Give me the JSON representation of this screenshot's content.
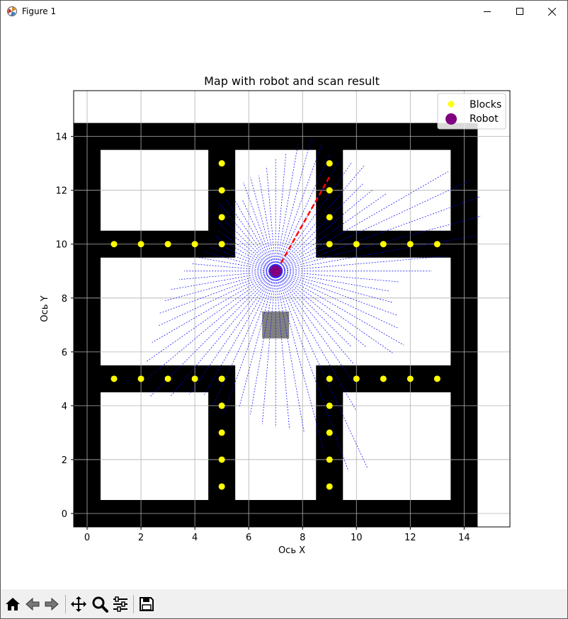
{
  "window": {
    "title": "Figure 1",
    "controls": [
      "minimize",
      "maximize",
      "close"
    ]
  },
  "toolbar": {
    "buttons": [
      "home-icon",
      "back-arrow-icon",
      "forward-arrow-icon",
      "pan-icon",
      "zoom-icon",
      "configure-subplots-icon",
      "save-icon"
    ]
  },
  "chart_data": {
    "type": "scatter",
    "title": "Map with robot and scan result",
    "xlabel": "Ось X",
    "ylabel": "Ось Y",
    "xlim": [
      -0.5,
      15.7
    ],
    "ylim": [
      -0.5,
      15.7
    ],
    "xticks": [
      0,
      2,
      4,
      6,
      8,
      10,
      12,
      14
    ],
    "yticks": [
      0,
      2,
      4,
      6,
      8,
      10,
      12,
      14
    ],
    "grid": true,
    "legend": {
      "placement": "top-right",
      "entries": [
        "Blocks",
        "Robot"
      ]
    },
    "colors": {
      "wall": "#000000",
      "block": "#ffff00",
      "robot": "#800080",
      "scan": "#0000ff",
      "heading": "#ff0000",
      "target": "#808080"
    },
    "walls": [
      {
        "x0": 0,
        "x1": 14,
        "y0": 0,
        "y1": 14
      }
    ],
    "rooms": [
      {
        "x0": 0.5,
        "x1": 4.5,
        "y0": 10.5,
        "y1": 13.5
      },
      {
        "x0": 9.5,
        "x1": 13.5,
        "y0": 10.5,
        "y1": 13.5
      },
      {
        "x0": 0.5,
        "x1": 4.5,
        "y0": 0.5,
        "y1": 4.5
      },
      {
        "x0": 9.5,
        "x1": 13.5,
        "y0": 0.5,
        "y1": 4.5
      },
      {
        "x0": 0.5,
        "x1": 13.5,
        "y0": 5.5,
        "y1": 9.5
      },
      {
        "x0": 5.5,
        "x1": 8.5,
        "y0": 0.5,
        "y1": 13.5
      }
    ],
    "blocks": [
      [
        5,
        13
      ],
      [
        5,
        12
      ],
      [
        5,
        11
      ],
      [
        5,
        10
      ],
      [
        1,
        10
      ],
      [
        2,
        10
      ],
      [
        3,
        10
      ],
      [
        4,
        10
      ],
      [
        9,
        13
      ],
      [
        9,
        12
      ],
      [
        9,
        11
      ],
      [
        9,
        10
      ],
      [
        10,
        10
      ],
      [
        11,
        10
      ],
      [
        12,
        10
      ],
      [
        13,
        10
      ],
      [
        1,
        5
      ],
      [
        2,
        5
      ],
      [
        3,
        5
      ],
      [
        4,
        5
      ],
      [
        5,
        5
      ],
      [
        5,
        4
      ],
      [
        5,
        3
      ],
      [
        5,
        2
      ],
      [
        5,
        1
      ],
      [
        9,
        5
      ],
      [
        10,
        5
      ],
      [
        11,
        5
      ],
      [
        12,
        5
      ],
      [
        13,
        5
      ],
      [
        9,
        4
      ],
      [
        9,
        3
      ],
      [
        9,
        2
      ],
      [
        9,
        1
      ]
    ],
    "robot": {
      "x": 7,
      "y": 9
    },
    "heading": {
      "x0": 7.2,
      "y0": 9.3,
      "x1": 9,
      "y1": 12.5
    },
    "target": {
      "x0": 6.5,
      "x1": 7.5,
      "y0": 6.5,
      "y1": 7.5
    },
    "scan_ranges": [
      5.8,
      6.4,
      7.6,
      7.9,
      8.1,
      8.0,
      7.4,
      5.0,
      4.7,
      4.6,
      5.1,
      4.9,
      4.7,
      4.8,
      5.0,
      5.1,
      4.8,
      4.4,
      4.2,
      3.9,
      3.6,
      3.6,
      3.5,
      2.9,
      3.0,
      3.2,
      3.3,
      3.0,
      2.8,
      2.6,
      2.6,
      2.5,
      2.6,
      2.7,
      2.9,
      3.1,
      3.4,
      3.6,
      4.0,
      4.3,
      4.6,
      4.8,
      5.3,
      5.9,
      6.3,
      6.6,
      6.1,
      5.6,
      5.3,
      5.5,
      5.6,
      5.2,
      5.4,
      5.7,
      5.8,
      5.9,
      6.1,
      7.0,
      7.9,
      8.1,
      6.0,
      5.2,
      4.5,
      4.0,
      4.4,
      5.3,
      5.5,
      5.0,
      4.8,
      4.5,
      4.3,
      4.6
    ]
  }
}
